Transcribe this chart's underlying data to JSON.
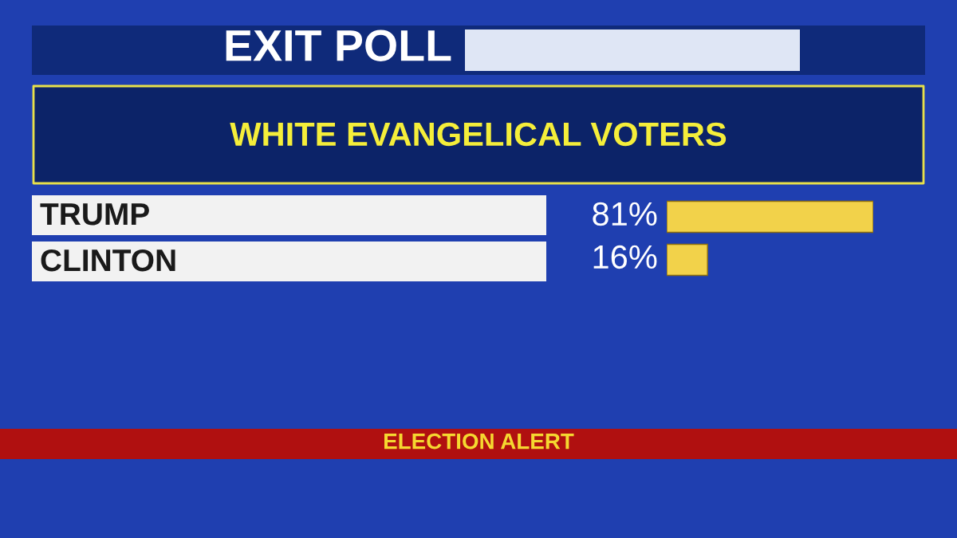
{
  "chart_data": {
    "type": "bar",
    "orientation": "horizontal",
    "title": "EXIT POLL",
    "subtitle": "WHITE EVANGELICAL VOTERS",
    "categories": [
      "TRUMP",
      "CLINTON"
    ],
    "values": [
      81,
      16
    ],
    "color": "#f2d24a",
    "value_labels": [
      "81%",
      "16%"
    ],
    "annotations": [
      "ELECTION ALERT"
    ]
  }
}
